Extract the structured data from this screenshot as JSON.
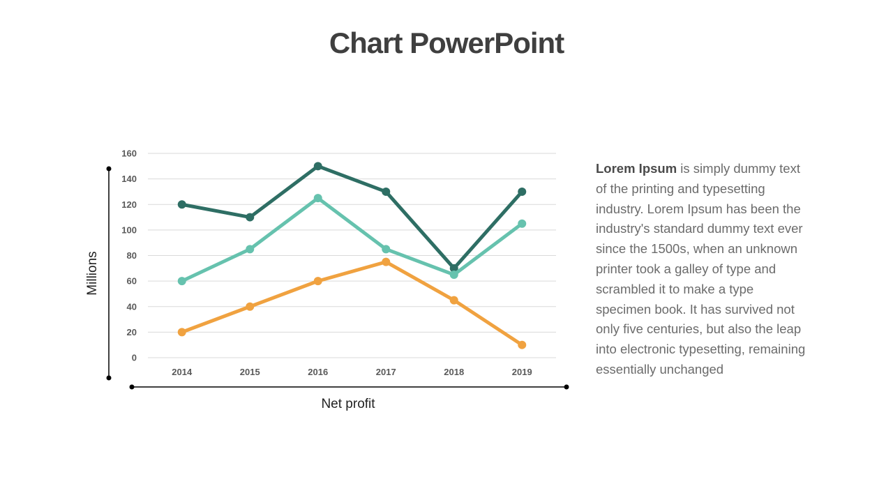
{
  "slide": {
    "title": "Chart PowerPoint"
  },
  "description": {
    "lead": "Lorem Ipsum",
    "body": " is simply dummy text of the printing and typesetting industry. Lorem Ipsum has been the industry's standard dummy text ever since the 1500s, when an unknown printer took a galley of type and scrambled it to make a type specimen book. It has survived not only five centuries, but also the leap into electronic typesetting, remaining essentially unchanged"
  },
  "chart_data": {
    "type": "line",
    "title": "",
    "xlabel": "Net profit",
    "ylabel": "Millions",
    "x": [
      "2014",
      "2015",
      "2016",
      "2017",
      "2018",
      "2019"
    ],
    "ylim": [
      0,
      160
    ],
    "yticks": [
      "0",
      "20",
      "40",
      "60",
      "80",
      "100",
      "120",
      "140",
      "160"
    ],
    "grid": true,
    "legend": "none",
    "series": [
      {
        "color": "#2e6e64",
        "values": [
          120,
          110,
          150,
          130,
          70,
          130
        ]
      },
      {
        "color": "#66c2ae",
        "values": [
          60,
          85,
          125,
          85,
          65,
          105
        ]
      },
      {
        "color": "#f0a240",
        "values": [
          20,
          40,
          60,
          75,
          45,
          10
        ]
      }
    ]
  }
}
